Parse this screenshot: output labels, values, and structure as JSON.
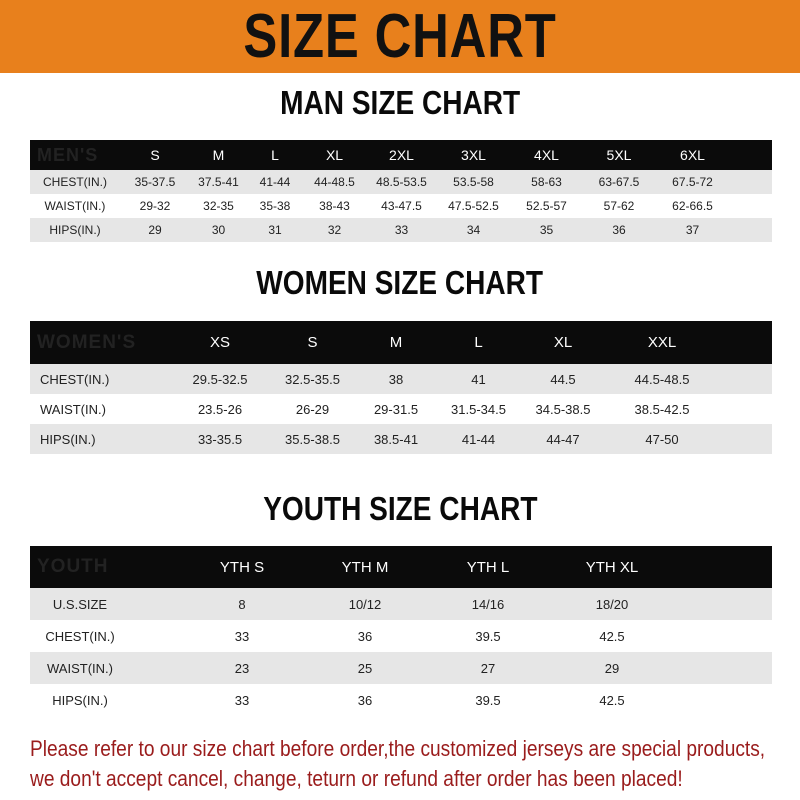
{
  "title": "SIZE CHART",
  "colors": {
    "banner": "#e8801c",
    "header_row": "#0b0b0b",
    "stripe": "#e6e6e6",
    "notice": "#9a1c1c"
  },
  "men": {
    "heading": "MAN SIZE CHART",
    "header": [
      "MEN'S",
      "S",
      "M",
      "L",
      "XL",
      "2XL",
      "3XL",
      "4XL",
      "5XL",
      "6XL"
    ],
    "rows": [
      [
        "CHEST(IN.)",
        "35-37.5",
        "37.5-41",
        "41-44",
        "44-48.5",
        "48.5-53.5",
        "53.5-58",
        "58-63",
        "63-67.5",
        "67.5-72"
      ],
      [
        "WAIST(IN.)",
        "29-32",
        "32-35",
        "35-38",
        "38-43",
        "43-47.5",
        "47.5-52.5",
        "52.5-57",
        "57-62",
        "62-66.5"
      ],
      [
        "HIPS(IN.)",
        "29",
        "30",
        "31",
        "32",
        "33",
        "34",
        "35",
        "36",
        "37"
      ]
    ]
  },
  "women": {
    "heading": "WOMEN SIZE CHART",
    "header": [
      "WOMEN'S",
      "XS",
      "S",
      "M",
      "L",
      "XL",
      "XXL"
    ],
    "rows": [
      [
        "CHEST(IN.)",
        "29.5-32.5",
        "32.5-35.5",
        "38",
        "41",
        "44.5",
        "44.5-48.5"
      ],
      [
        "WAIST(IN.)",
        "23.5-26",
        "26-29",
        "29-31.5",
        "31.5-34.5",
        "34.5-38.5",
        "38.5-42.5"
      ],
      [
        "HIPS(IN.)",
        "33-35.5",
        "35.5-38.5",
        "38.5-41",
        "41-44",
        "44-47",
        "47-50"
      ]
    ]
  },
  "youth": {
    "heading": "YOUTH SIZE CHART",
    "header": [
      "YOUTH",
      "YTH S",
      "YTH M",
      "YTH L",
      "YTH XL"
    ],
    "rows": [
      [
        "U.S.SIZE",
        "8",
        "10/12",
        "14/16",
        "18/20"
      ],
      [
        "CHEST(IN.)",
        "33",
        "36",
        "39.5",
        "42.5"
      ],
      [
        "WAIST(IN.)",
        "23",
        "25",
        "27",
        "29"
      ],
      [
        "HIPS(IN.)",
        "33",
        "36",
        "39.5",
        "42.5"
      ]
    ]
  },
  "notice": {
    "line1": "Please refer to our size chart before order,the customized jerseys are special products,",
    "line2": "we don't accept cancel, change, teturn or refund after order has been placed!"
  }
}
